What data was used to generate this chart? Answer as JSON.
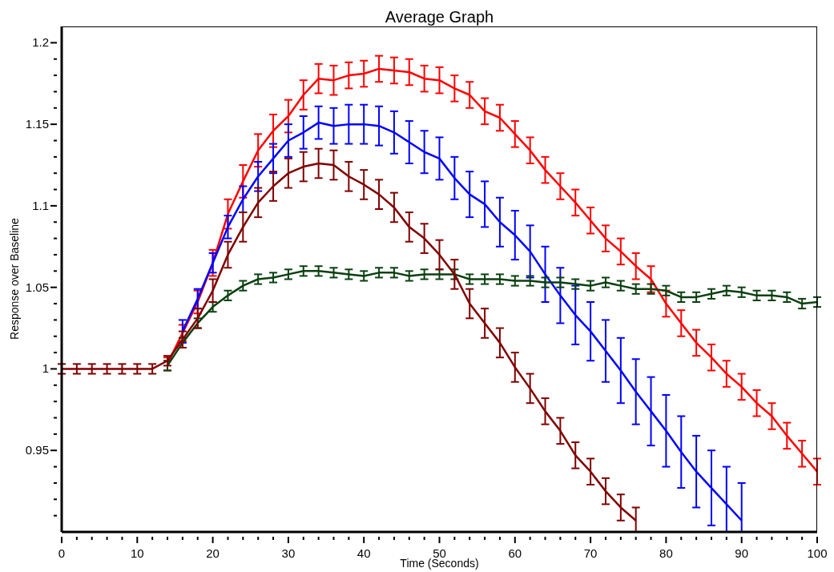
{
  "chart_data": {
    "type": "line",
    "title": "Average Graph",
    "xlabel": "Time (Seconds)",
    "ylabel": "Response over Baseline",
    "x": [
      0,
      2,
      4,
      6,
      8,
      10,
      12,
      14,
      16,
      18,
      20,
      22,
      24,
      26,
      28,
      30,
      32,
      34,
      36,
      38,
      40,
      42,
      44,
      46,
      48,
      50,
      52,
      54,
      56,
      58,
      60,
      62,
      64,
      66,
      68,
      70,
      72,
      74,
      76,
      78,
      80,
      82,
      84,
      86,
      88,
      90,
      92,
      94,
      96,
      98,
      100
    ],
    "series": [
      {
        "color": "#ff0000",
        "values": [
          null,
          null,
          null,
          null,
          null,
          null,
          null,
          1.003,
          1.022,
          1.041,
          1.065,
          1.095,
          1.115,
          1.134,
          1.146,
          1.155,
          1.168,
          1.178,
          1.177,
          1.18,
          1.181,
          1.184,
          1.183,
          1.182,
          1.178,
          1.177,
          1.172,
          1.168,
          1.158,
          1.154,
          1.144,
          1.134,
          1.122,
          1.112,
          1.102,
          1.091,
          1.08,
          1.072,
          1.063,
          1.055,
          1.04,
          1.028,
          1.016,
          1.007,
          0.997,
          0.989,
          0.979,
          0.971,
          0.959,
          0.948,
          0.937
        ],
        "errors": [
          null,
          null,
          null,
          null,
          null,
          null,
          null,
          0.004,
          0.005,
          0.007,
          0.008,
          0.009,
          0.01,
          0.01,
          0.01,
          0.01,
          0.009,
          0.009,
          0.009,
          0.008,
          0.008,
          0.008,
          0.008,
          0.008,
          0.008,
          0.008,
          0.008,
          0.008,
          0.008,
          0.008,
          0.008,
          0.008,
          0.008,
          0.008,
          0.008,
          0.008,
          0.008,
          0.008,
          0.008,
          0.008,
          0.008,
          0.008,
          0.008,
          0.008,
          0.008,
          0.008,
          0.008,
          0.008,
          0.008,
          0.008,
          0.008
        ]
      },
      {
        "color": "#0000ff",
        "values": [
          null,
          null,
          null,
          null,
          null,
          null,
          null,
          null,
          1.023,
          1.043,
          1.065,
          1.087,
          1.104,
          1.118,
          1.129,
          1.14,
          1.145,
          1.151,
          1.149,
          1.15,
          1.15,
          1.149,
          1.145,
          1.139,
          1.133,
          1.129,
          1.117,
          1.107,
          1.101,
          1.09,
          1.082,
          1.072,
          1.058,
          1.045,
          1.033,
          1.023,
          1.011,
          0.999,
          0.986,
          0.974,
          0.962,
          0.949,
          0.937,
          0.927,
          0.917,
          0.907,
          null,
          null,
          null,
          null,
          null
        ],
        "errors": [
          null,
          null,
          null,
          null,
          null,
          null,
          null,
          null,
          0.007,
          0.006,
          0.006,
          0.007,
          0.008,
          0.009,
          0.009,
          0.01,
          0.01,
          0.01,
          0.011,
          0.012,
          0.012,
          0.012,
          0.013,
          0.013,
          0.013,
          0.013,
          0.013,
          0.014,
          0.014,
          0.015,
          0.015,
          0.016,
          0.017,
          0.017,
          0.018,
          0.018,
          0.019,
          0.02,
          0.02,
          0.021,
          0.022,
          0.022,
          0.022,
          0.023,
          [
            0.9,
            0.94
          ],
          [
            0.9,
            0.93
          ],
          null,
          null,
          null,
          null,
          null
        ]
      },
      {
        "color": "#0b4010",
        "values": [
          null,
          null,
          null,
          null,
          null,
          null,
          null,
          1.002,
          1.016,
          1.028,
          1.038,
          1.045,
          1.051,
          1.055,
          1.056,
          1.058,
          1.06,
          1.06,
          1.059,
          1.058,
          1.057,
          1.059,
          1.059,
          1.057,
          1.058,
          1.058,
          1.058,
          1.055,
          1.055,
          1.055,
          1.054,
          1.054,
          1.053,
          1.053,
          1.052,
          1.051,
          1.053,
          1.051,
          1.049,
          1.049,
          1.048,
          1.044,
          1.044,
          1.046,
          1.048,
          1.047,
          1.045,
          1.045,
          1.044,
          1.04,
          1.041
        ],
        "errors": [
          null,
          null,
          null,
          null,
          null,
          null,
          null,
          0.003,
          0.003,
          0.003,
          0.003,
          0.003,
          0.003,
          0.003,
          0.003,
          0.003,
          0.003,
          0.003,
          0.003,
          0.003,
          0.003,
          0.003,
          0.003,
          0.003,
          0.003,
          0.003,
          0.003,
          0.003,
          0.003,
          0.003,
          0.003,
          0.003,
          0.003,
          0.003,
          0.003,
          0.003,
          0.003,
          0.003,
          0.003,
          0.003,
          0.003,
          0.003,
          0.003,
          0.003,
          0.003,
          0.003,
          0.003,
          0.003,
          0.003,
          0.003,
          0.003
        ]
      },
      {
        "color": "#800000",
        "values": [
          1.0,
          1.0,
          1.0,
          1.0,
          1.0,
          1.0,
          1.0,
          1.005,
          1.018,
          1.031,
          1.048,
          1.07,
          1.087,
          1.102,
          1.112,
          1.12,
          1.124,
          1.126,
          1.125,
          1.118,
          1.113,
          1.107,
          1.099,
          1.087,
          1.08,
          1.07,
          1.058,
          1.04,
          1.028,
          1.016,
          1.001,
          0.988,
          0.974,
          0.962,
          0.947,
          0.937,
          0.925,
          0.915,
          0.907,
          null,
          null,
          null,
          null,
          null,
          null,
          null,
          null,
          null,
          null,
          null,
          null
        ],
        "errors": [
          0.003,
          0.003,
          0.003,
          0.003,
          0.003,
          0.003,
          0.003,
          0.003,
          0.005,
          0.006,
          0.007,
          0.008,
          0.009,
          0.009,
          0.009,
          0.009,
          0.009,
          0.009,
          0.009,
          0.009,
          0.009,
          0.009,
          0.009,
          0.009,
          0.009,
          0.009,
          0.009,
          0.009,
          0.009,
          0.009,
          0.009,
          0.009,
          0.008,
          0.008,
          0.008,
          0.008,
          0.008,
          0.008,
          [
            0.9,
            0.915
          ],
          null,
          null,
          null,
          null,
          null,
          null,
          null,
          null,
          null,
          null,
          null,
          null
        ]
      }
    ],
    "xlim": [
      0,
      100
    ],
    "xticks": [
      0,
      {
        "value": 2,
        "label": null
      },
      {
        "value": 4,
        "label": null
      },
      {
        "value": 6,
        "label": null
      },
      {
        "value": 8,
        "label": null
      },
      10,
      {
        "value": 12,
        "label": null
      },
      {
        "value": 14,
        "label": null
      },
      {
        "value": 16,
        "label": null
      },
      {
        "value": 18,
        "label": null
      },
      20,
      {
        "value": 22,
        "label": null
      },
      {
        "value": 24,
        "label": null
      },
      {
        "value": 26,
        "label": null
      },
      {
        "value": 28,
        "label": null
      },
      30,
      {
        "value": 32,
        "label": null
      },
      {
        "value": 34,
        "label": null
      },
      {
        "value": 36,
        "label": null
      },
      {
        "value": 38,
        "label": null
      },
      40,
      {
        "value": 42,
        "label": null
      },
      {
        "value": 44,
        "label": null
      },
      {
        "value": 46,
        "label": null
      },
      {
        "value": 48,
        "label": null
      },
      50,
      {
        "value": 52,
        "label": null
      },
      {
        "value": 54,
        "label": null
      },
      {
        "value": 56,
        "label": null
      },
      {
        "value": 58,
        "label": null
      },
      60,
      {
        "value": 62,
        "label": null
      },
      {
        "value": 64,
        "label": null
      },
      {
        "value": 66,
        "label": null
      },
      {
        "value": 68,
        "label": null
      },
      70,
      {
        "value": 72,
        "label": null
      },
      {
        "value": 74,
        "label": null
      },
      {
        "value": 76,
        "label": null
      },
      {
        "value": 78,
        "label": null
      },
      80,
      {
        "value": 82,
        "label": null
      },
      {
        "value": 84,
        "label": null
      },
      {
        "value": 86,
        "label": null
      },
      {
        "value": 88,
        "label": null
      },
      90,
      {
        "value": 92,
        "label": null
      },
      {
        "value": 94,
        "label": null
      },
      {
        "value": 96,
        "label": null
      },
      {
        "value": 98,
        "label": null
      },
      100
    ],
    "ylim": [
      0.9,
      1.21
    ],
    "yticks": [
      {
        "value": 0.91,
        "label": null
      },
      {
        "value": 0.92,
        "label": null
      },
      {
        "value": 0.93,
        "label": null
      },
      {
        "value": 0.94,
        "label": null
      },
      0.95,
      {
        "value": 0.96,
        "label": null
      },
      {
        "value": 0.97,
        "label": null
      },
      {
        "value": 0.98,
        "label": null
      },
      {
        "value": 0.99,
        "label": null
      },
      1,
      {
        "value": 1.01,
        "label": null
      },
      {
        "value": 1.02,
        "label": null
      },
      {
        "value": 1.03,
        "label": null
      },
      {
        "value": 1.04,
        "label": null
      },
      1.05,
      {
        "value": 1.06,
        "label": null
      },
      {
        "value": 1.07,
        "label": null
      },
      {
        "value": 1.08,
        "label": null
      },
      {
        "value": 1.09,
        "label": null
      },
      1.1,
      {
        "value": 1.11,
        "label": null
      },
      {
        "value": 1.12,
        "label": null
      },
      {
        "value": 1.13,
        "label": null
      },
      {
        "value": 1.14,
        "label": null
      },
      1.15,
      {
        "value": 1.16,
        "label": null
      },
      {
        "value": 1.17,
        "label": null
      },
      {
        "value": 1.18,
        "label": null
      },
      {
        "value": 1.19,
        "label": null
      },
      1.2
    ],
    "grid": false,
    "legend": false,
    "marker": "none",
    "line_style": "solid"
  }
}
